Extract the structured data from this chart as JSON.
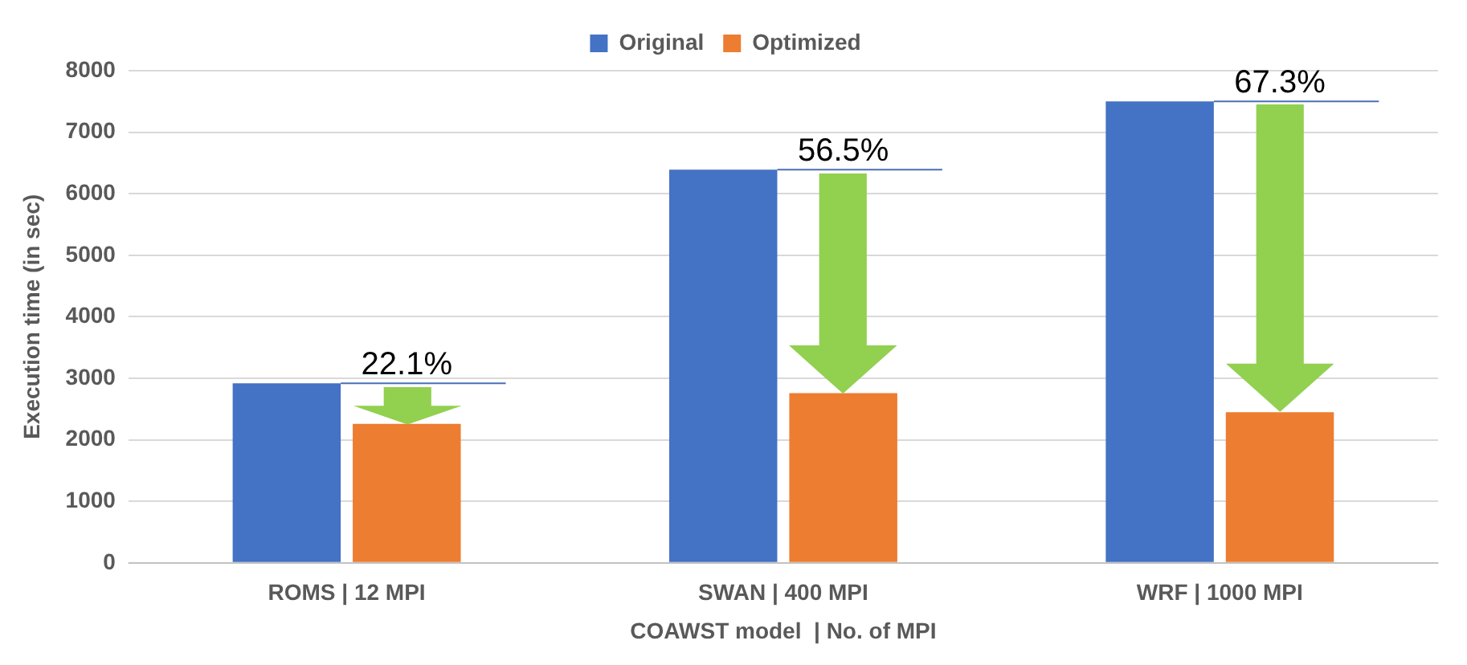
{
  "chart_data": {
    "type": "bar",
    "xlabel": "COAWST model  | No. of MPI",
    "ylabel": "Execution time (in sec)",
    "categories": [
      "ROMS | 12 MPI",
      "SWAN | 400 MPI",
      "WRF | 1000 MPI"
    ],
    "series": [
      {
        "name": "Original",
        "color": "#4472c4",
        "values": [
          2920,
          6390,
          7500
        ]
      },
      {
        "name": "Optimized",
        "color": "#ed7d31",
        "values": [
          2260,
          2760,
          2450
        ]
      }
    ],
    "ylim": [
      0,
      8000
    ],
    "yticks": [
      0,
      1000,
      2000,
      3000,
      4000,
      5000,
      6000,
      7000,
      8000
    ],
    "grid": "y",
    "legend": "top",
    "annotations": [
      {
        "text": "22.1%",
        "x": "ROMS | 12 MPI",
        "y": 2920
      },
      {
        "text": "56.5%",
        "x": "SWAN | 400 MPI",
        "y": 6390
      },
      {
        "text": "67.3%",
        "x": "WRF | 1000 MPI",
        "y": 7500
      }
    ]
  }
}
